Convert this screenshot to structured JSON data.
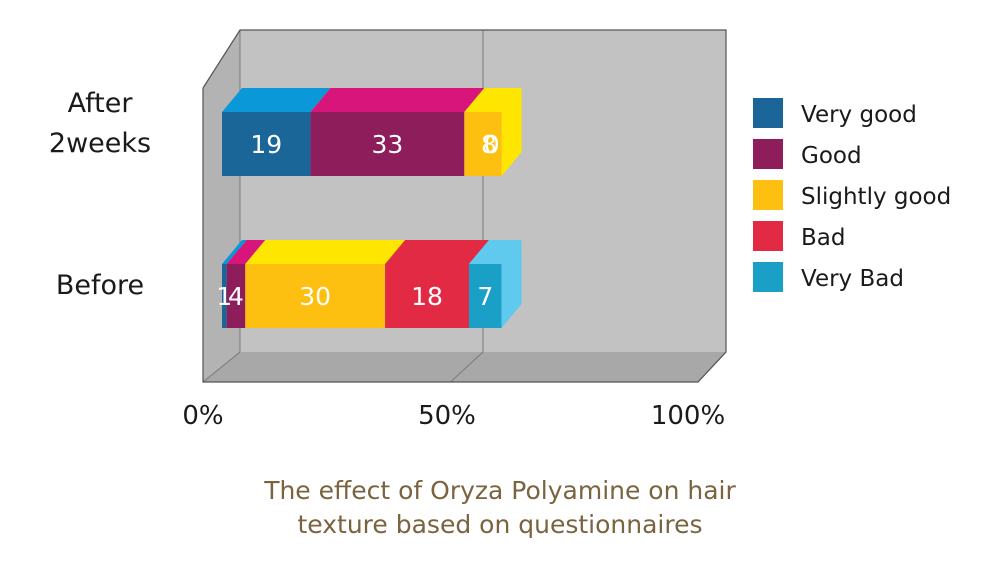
{
  "chart_data": {
    "type": "bar",
    "orientation": "horizontal",
    "stacked": true,
    "percent_stacked": true,
    "three_d": true,
    "categories": [
      "After 2weeks",
      "Before"
    ],
    "category_lines": [
      [
        "After",
        "2weeks"
      ],
      [
        "Before"
      ]
    ],
    "series": [
      {
        "name": "Very good",
        "values": [
          19,
          1
        ],
        "labels": [
          "19",
          "1"
        ],
        "color": "#1a6699",
        "top_color": "#0a98d8"
      },
      {
        "name": "Good",
        "values": [
          33,
          4
        ],
        "labels": [
          "33",
          "4"
        ],
        "color": "#8e1d5c",
        "top_color": "#d8157a"
      },
      {
        "name": "Slightly good",
        "values": [
          8,
          30
        ],
        "labels": [
          "8",
          "30"
        ],
        "color": "#fdbf10",
        "top_color": "#fee600"
      },
      {
        "name": "Bad",
        "values": [
          0,
          18
        ],
        "labels": [
          "0",
          "18"
        ],
        "color": "#e22a44",
        "top_color": "#e22a44"
      },
      {
        "name": "Very Bad",
        "values": [
          0,
          7
        ],
        "labels": [
          "",
          "7"
        ],
        "color": "#1aa0c7",
        "top_color": "#5fc9ee"
      }
    ],
    "x_ticks": [
      "0%",
      "50%",
      "100%"
    ],
    "xlim": [
      0,
      100
    ],
    "legend_position": "right",
    "grid": true,
    "wall_color": "#c2c2c2"
  },
  "caption_lines": [
    "The effect of Oryza Polyamine on hair",
    "texture based on questionnaires"
  ]
}
